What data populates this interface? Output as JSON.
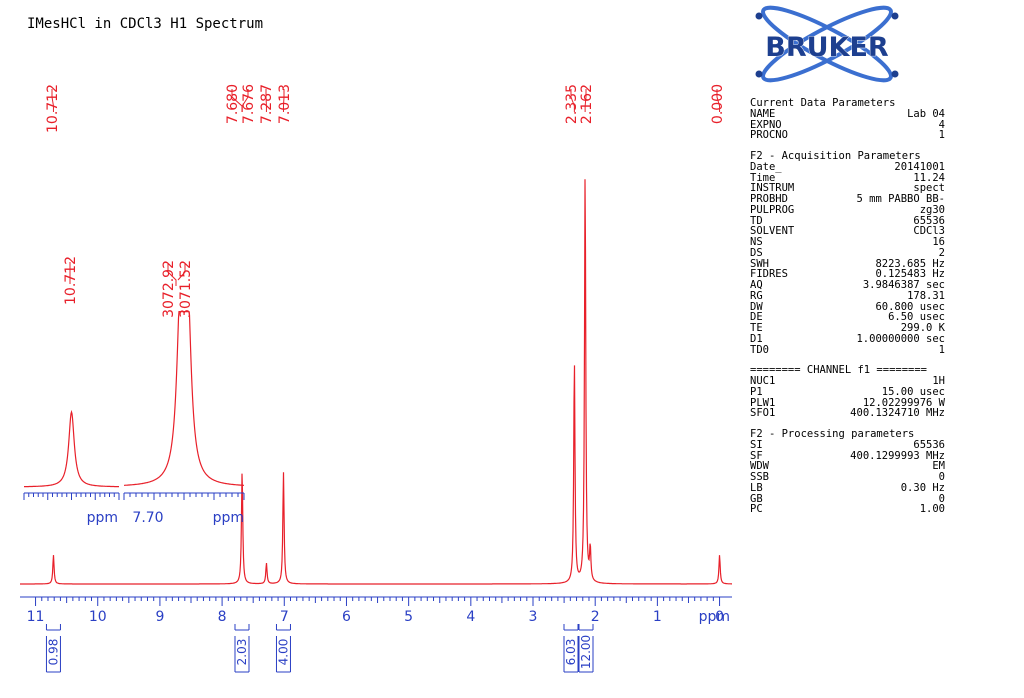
{
  "title": "IMesHCl in CDCl3 H1 Spectrum",
  "logo": {
    "text": "BRUKER",
    "accent": "#1d3f8f",
    "orbit": "#3b6fd0"
  },
  "colors": {
    "spectrum": "#e8202a",
    "axis": "#2a3fc4",
    "text": "#000000"
  },
  "params": {
    "current": {
      "title": "Current Data Parameters",
      "rows": [
        [
          "NAME",
          "Lab 04"
        ],
        [
          "EXPNO",
          "4"
        ],
        [
          "PROCNO",
          "1"
        ]
      ]
    },
    "acq": {
      "title": "F2 - Acquisition Parameters",
      "rows": [
        [
          "Date_",
          "20141001"
        ],
        [
          "Time",
          "11.24"
        ],
        [
          "INSTRUM",
          "spect"
        ],
        [
          "PROBHD",
          "5 mm PABBO BB-"
        ],
        [
          "PULPROG",
          "zg30"
        ],
        [
          "TD",
          "65536"
        ],
        [
          "SOLVENT",
          "CDCl3"
        ],
        [
          "NS",
          "16"
        ],
        [
          "DS",
          "2"
        ],
        [
          "SWH",
          "8223.685 Hz"
        ],
        [
          "FIDRES",
          "0.125483 Hz"
        ],
        [
          "AQ",
          "3.9846387 sec"
        ],
        [
          "RG",
          "178.31"
        ],
        [
          "DW",
          "60.800 usec"
        ],
        [
          "DE",
          "6.50 usec"
        ],
        [
          "TE",
          "299.0 K"
        ],
        [
          "D1",
          "1.00000000 sec"
        ],
        [
          "TD0",
          "1"
        ]
      ]
    },
    "channel": {
      "title": "======== CHANNEL f1 ========",
      "rows": [
        [
          "NUC1",
          "1H"
        ],
        [
          "P1",
          "15.00 usec"
        ],
        [
          "PLW1",
          "12.02299976 W"
        ],
        [
          "SFO1",
          "400.1324710 MHz"
        ]
      ]
    },
    "proc": {
      "title": "F2 - Processing parameters",
      "rows": [
        [
          "SI",
          "65536"
        ],
        [
          "SF",
          "400.1299993 MHz"
        ],
        [
          "WDW",
          "EM"
        ],
        [
          "SSB",
          "0"
        ],
        [
          "LB",
          "0.30 Hz"
        ],
        [
          "GB",
          "0"
        ],
        [
          "PC",
          "1.00"
        ]
      ]
    }
  },
  "chart_data": {
    "type": "line",
    "title": "IMesHCl in CDCl3 H1 Spectrum",
    "xlabel": "ppm",
    "xlim": [
      11.25,
      -0.2
    ],
    "x_reversed": true,
    "x_ticks": [
      "11",
      "10",
      "9",
      "8",
      "7",
      "6",
      "5",
      "4",
      "3",
      "2",
      "1",
      "0"
    ],
    "x_unit_label": "ppm",
    "peaks": [
      {
        "ppm": 10.712,
        "height": 0.07
      },
      {
        "ppm": 7.68,
        "height": 0.14
      },
      {
        "ppm": 7.676,
        "height": 0.14
      },
      {
        "ppm": 7.287,
        "height": 0.05
      },
      {
        "ppm": 7.013,
        "height": 0.27
      },
      {
        "ppm": 2.335,
        "height": 0.54
      },
      {
        "ppm": 2.162,
        "height": 1.0
      },
      {
        "ppm": 2.08,
        "height": 0.08
      },
      {
        "ppm": 0.0,
        "height": 0.07
      }
    ],
    "peak_labels": [
      {
        "ppm": 10.712,
        "text": "10.712"
      },
      {
        "ppm": 7.68,
        "text": "7.680"
      },
      {
        "ppm": 7.676,
        "text": "7.676"
      },
      {
        "ppm": 7.287,
        "text": "7.287"
      },
      {
        "ppm": 7.013,
        "text": "7.013"
      },
      {
        "ppm": 2.335,
        "text": "2.335"
      },
      {
        "ppm": 2.162,
        "text": "2.162"
      },
      {
        "ppm": 0.0,
        "text": "0.000"
      }
    ],
    "integrals": [
      {
        "ppm": 10.712,
        "value": "0.98"
      },
      {
        "ppm": 7.68,
        "value": "2.03"
      },
      {
        "ppm": 7.013,
        "value": "4.00"
      },
      {
        "ppm": 2.335,
        "value": "6.03"
      },
      {
        "ppm": 2.162,
        "value": "12.00"
      }
    ],
    "insets": [
      {
        "name": "inset-10.712",
        "peak_label": "10.712",
        "peaks": [
          {
            "pos": 0.5,
            "height": 1.0
          }
        ],
        "tick_labels": [],
        "unit": "ppm"
      },
      {
        "name": "inset-7.68",
        "peak_labels": [
          "3072.92",
          "3071.52"
        ],
        "peaks": [
          {
            "pos": 0.47,
            "height": 1.0
          },
          {
            "pos": 0.53,
            "height": 1.03
          }
        ],
        "tick_labels": [
          "7.70"
        ],
        "unit": "ppm"
      }
    ]
  }
}
